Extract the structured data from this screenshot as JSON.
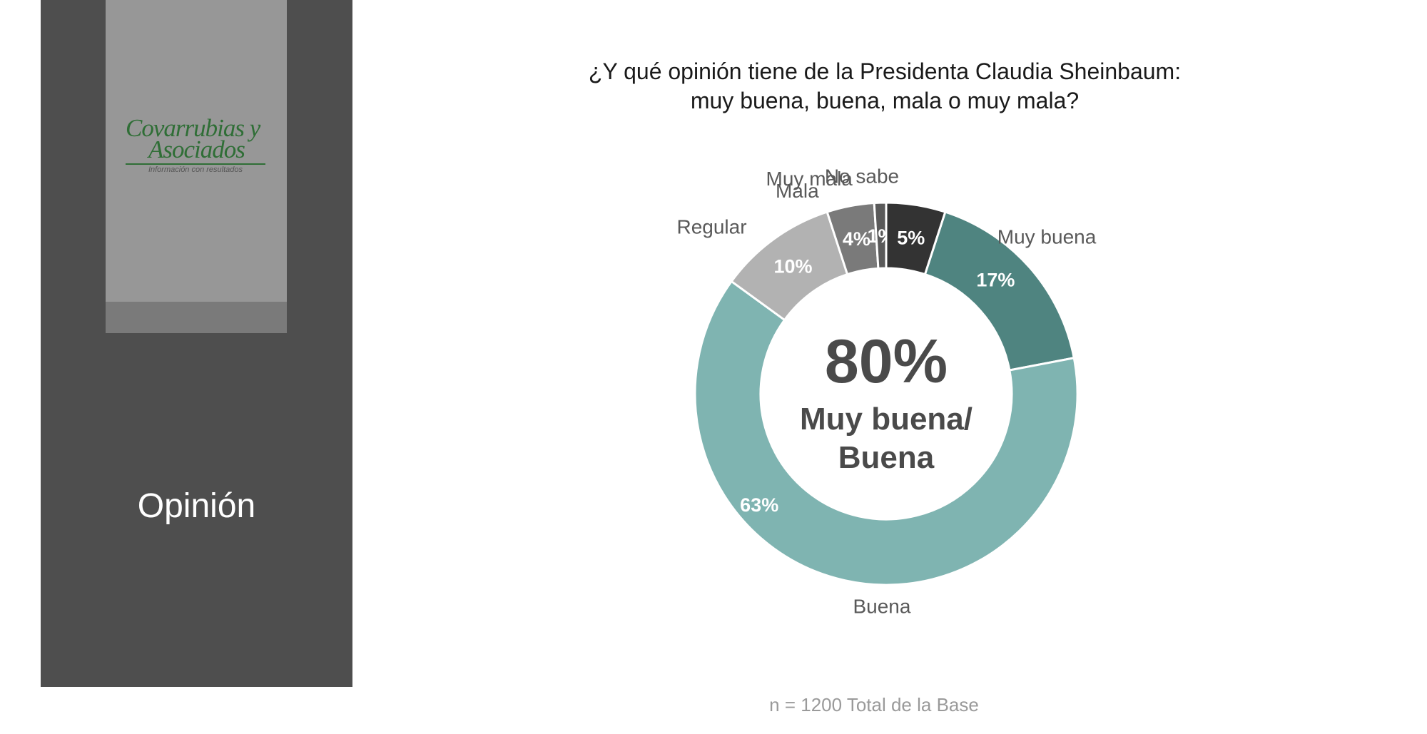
{
  "sidebar": {
    "logo_line1": "Covarrubias y",
    "logo_line2": "Asociados",
    "logo_tagline": "Información con resultados",
    "section_title": "Opinión"
  },
  "footnote": "n = 1200 Total de la Base",
  "chart_data": {
    "type": "pie",
    "donut": true,
    "title": "¿Y qué opinión tiene de la Presidenta Claudia Sheinbaum: muy buena, buena, mala o muy mala?",
    "title_lines": [
      "¿Y qué opinión tiene de la Presidenta Claudia Sheinbaum:",
      "muy buena, buena, mala o muy mala?"
    ],
    "center_value": "80%",
    "center_label_lines": [
      "Muy buena/",
      "Buena"
    ],
    "slices": [
      {
        "label": "Muy buena",
        "value": 17,
        "value_label": "17%",
        "color": "#4f8480"
      },
      {
        "label": "Buena",
        "value": 63,
        "value_label": "63%",
        "color": "#7fb4b1"
      },
      {
        "label": "Regular",
        "value": 10,
        "value_label": "10%",
        "color": "#b2b2b2"
      },
      {
        "label": "Mala",
        "value": 4,
        "value_label": "4%",
        "color": "#7a7a7a"
      },
      {
        "label": "Muy mala",
        "value": 1,
        "value_label": "1%",
        "color": "#5a5a5a"
      },
      {
        "label": "No sabe",
        "value": 5,
        "value_label": "5%",
        "color": "#333333"
      }
    ]
  }
}
